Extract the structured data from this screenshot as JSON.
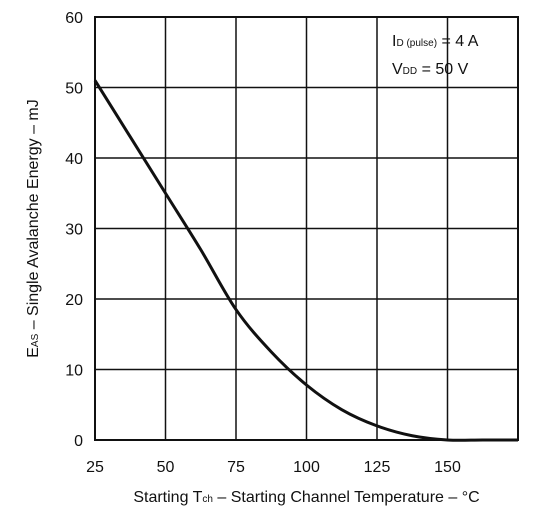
{
  "chart_data": {
    "type": "line",
    "xlabel": {
      "prefix": "Starting T",
      "subscript": "ch",
      "suffix": " – Starting Channel Temperature – °C"
    },
    "ylabel": {
      "prefix": "E",
      "subscript": "AS",
      "suffix": " – Single Avalanche Energy – mJ"
    },
    "xlim": [
      25,
      175
    ],
    "ylim": [
      0,
      60
    ],
    "x_ticks": [
      25,
      50,
      75,
      100,
      125,
      150
    ],
    "x_tick_labels": [
      "25",
      "50",
      "75",
      "100",
      "125",
      "150"
    ],
    "y_ticks": [
      0,
      10,
      20,
      30,
      40,
      50,
      60
    ],
    "y_tick_labels": [
      "0",
      "10",
      "20",
      "30",
      "40",
      "50",
      "60"
    ],
    "grid": true,
    "annotations": [
      {
        "prefix": "I",
        "subscript": "D (pulse)",
        "suffix": " = 4 A"
      },
      {
        "prefix": "V",
        "subscript": "DD",
        "suffix": " = 50 V"
      }
    ],
    "series": [
      {
        "x": [
          25,
          37.5,
          50,
          62.5,
          75,
          87.5,
          100,
          112.5,
          125,
          137.5,
          150,
          162.5,
          175
        ],
        "values": [
          51,
          43,
          35,
          27,
          18.5,
          12.5,
          7.8,
          4.3,
          2,
          0.6,
          0,
          0,
          0
        ]
      }
    ]
  }
}
